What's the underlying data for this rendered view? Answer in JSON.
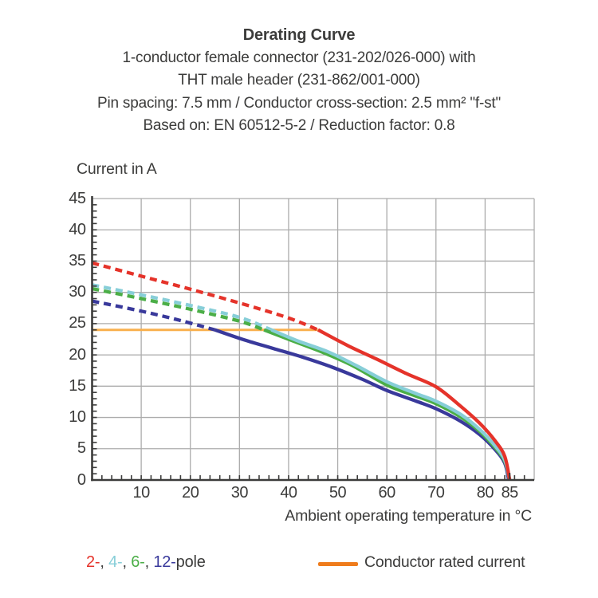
{
  "header": {
    "title": "Derating Curve",
    "lines": [
      "1-conductor female connector (231-202/026-000) with",
      "THT male header (231-862/001-000)",
      "Pin spacing: 7.5 mm / Conductor cross-section: 2.5 mm² \"f-st\"",
      "Based on: EN 60512-5-2 / Reduction factor: 0.8"
    ]
  },
  "y_axis": {
    "title": "Current in A",
    "tick_labels": [
      0,
      5,
      10,
      15,
      20,
      25,
      30,
      35,
      40,
      45
    ],
    "major_step": 5,
    "minor_step": 1,
    "max": 45
  },
  "x_axis": {
    "title": "Ambient operating temperature in °C",
    "tick_labels": [
      10,
      20,
      30,
      40,
      50,
      60,
      70,
      80,
      85
    ],
    "gridline_step": 10,
    "minor_step": 2,
    "max": 90
  },
  "legend": {
    "pole_segments": [
      {
        "text": "2-",
        "color": "#E5332A"
      },
      {
        "text": ", ",
        "color": "#3C3C3B"
      },
      {
        "text": "4-",
        "color": "#87CED8"
      },
      {
        "text": ", ",
        "color": "#3C3C3B"
      },
      {
        "text": "6-",
        "color": "#4BAE47"
      },
      {
        "text": ", ",
        "color": "#3C3C3B"
      },
      {
        "text": "12-",
        "color": "#39399B"
      },
      {
        "text": "pole",
        "color": "#3C3C3B"
      }
    ],
    "rated_label": "Conductor rated current",
    "rated_swatch_color": "#EF7C1C"
  },
  "colors": {
    "grid": "#ACACAC",
    "axis": "#3C3C3B",
    "text": "#3C3C3B",
    "rated_line": "#F9B04E"
  },
  "chart_data": {
    "type": "line",
    "title": "Derating Curve",
    "xlabel": "Ambient operating temperature in °C",
    "ylabel": "Current in A",
    "xlim": [
      0,
      90
    ],
    "ylim": [
      0,
      45
    ],
    "x_ticks": [
      10,
      20,
      30,
      40,
      50,
      60,
      70,
      80,
      85
    ],
    "y_ticks": [
      0,
      5,
      10,
      15,
      20,
      25,
      30,
      35,
      40,
      45
    ],
    "grid": true,
    "rated_current_A": 24,
    "series": [
      {
        "name": "2-pole",
        "color": "#E5332A",
        "dashed_points": [
          [
            0,
            34.7
          ],
          [
            10,
            32.6
          ],
          [
            20,
            30.5
          ],
          [
            30,
            28.3
          ],
          [
            40,
            25.9
          ],
          [
            46,
            24
          ]
        ],
        "solid_points": [
          [
            46,
            24
          ],
          [
            52,
            21.5
          ],
          [
            58,
            19.3
          ],
          [
            64,
            17.0
          ],
          [
            70,
            14.9
          ],
          [
            75,
            11.8
          ],
          [
            79,
            9.0
          ],
          [
            82,
            6.3
          ],
          [
            84,
            3.8
          ],
          [
            85,
            0
          ]
        ]
      },
      {
        "name": "4-pole",
        "color": "#87CED8",
        "dashed_points": [
          [
            0,
            31.2
          ],
          [
            10,
            29.6
          ],
          [
            20,
            27.9
          ],
          [
            30,
            26.0
          ],
          [
            36.5,
            24
          ]
        ],
        "solid_points": [
          [
            36.5,
            24
          ],
          [
            42,
            22.2
          ],
          [
            48,
            20.5
          ],
          [
            54,
            18.2
          ],
          [
            60,
            15.7
          ],
          [
            66,
            13.8
          ],
          [
            70,
            12.6
          ],
          [
            75,
            10.5
          ],
          [
            79,
            8.0
          ],
          [
            82,
            5.5
          ],
          [
            84,
            3.2
          ],
          [
            85,
            0
          ]
        ]
      },
      {
        "name": "6-pole",
        "color": "#4BAE47",
        "dashed_points": [
          [
            0,
            30.6
          ],
          [
            10,
            29.0
          ],
          [
            20,
            27.3
          ],
          [
            30,
            25.4
          ],
          [
            35,
            24
          ]
        ],
        "solid_points": [
          [
            35,
            24
          ],
          [
            41,
            22.2
          ],
          [
            47,
            20.4
          ],
          [
            53,
            18.3
          ],
          [
            60,
            15.2
          ],
          [
            66,
            13.4
          ],
          [
            70,
            12.2
          ],
          [
            75,
            10.1
          ],
          [
            79,
            7.7
          ],
          [
            82,
            5.2
          ],
          [
            84,
            3.0
          ],
          [
            85,
            0
          ]
        ]
      },
      {
        "name": "12-pole",
        "color": "#39399B",
        "dashed_points": [
          [
            0,
            28.6
          ],
          [
            10,
            27.0
          ],
          [
            18,
            25.5
          ],
          [
            25,
            24
          ]
        ],
        "solid_points": [
          [
            25,
            24
          ],
          [
            31,
            22.4
          ],
          [
            37,
            21.0
          ],
          [
            43,
            19.6
          ],
          [
            49,
            18.0
          ],
          [
            55,
            16.1
          ],
          [
            60,
            14.3
          ],
          [
            66,
            12.6
          ],
          [
            70,
            11.4
          ],
          [
            75,
            9.4
          ],
          [
            79,
            7.2
          ],
          [
            82,
            4.9
          ],
          [
            84,
            2.7
          ],
          [
            84.8,
            0
          ]
        ]
      },
      {
        "name": "Conductor rated current",
        "color": "#F9B04E",
        "rated": true,
        "solid_points": [
          [
            0,
            24
          ],
          [
            46,
            24
          ]
        ]
      }
    ]
  }
}
